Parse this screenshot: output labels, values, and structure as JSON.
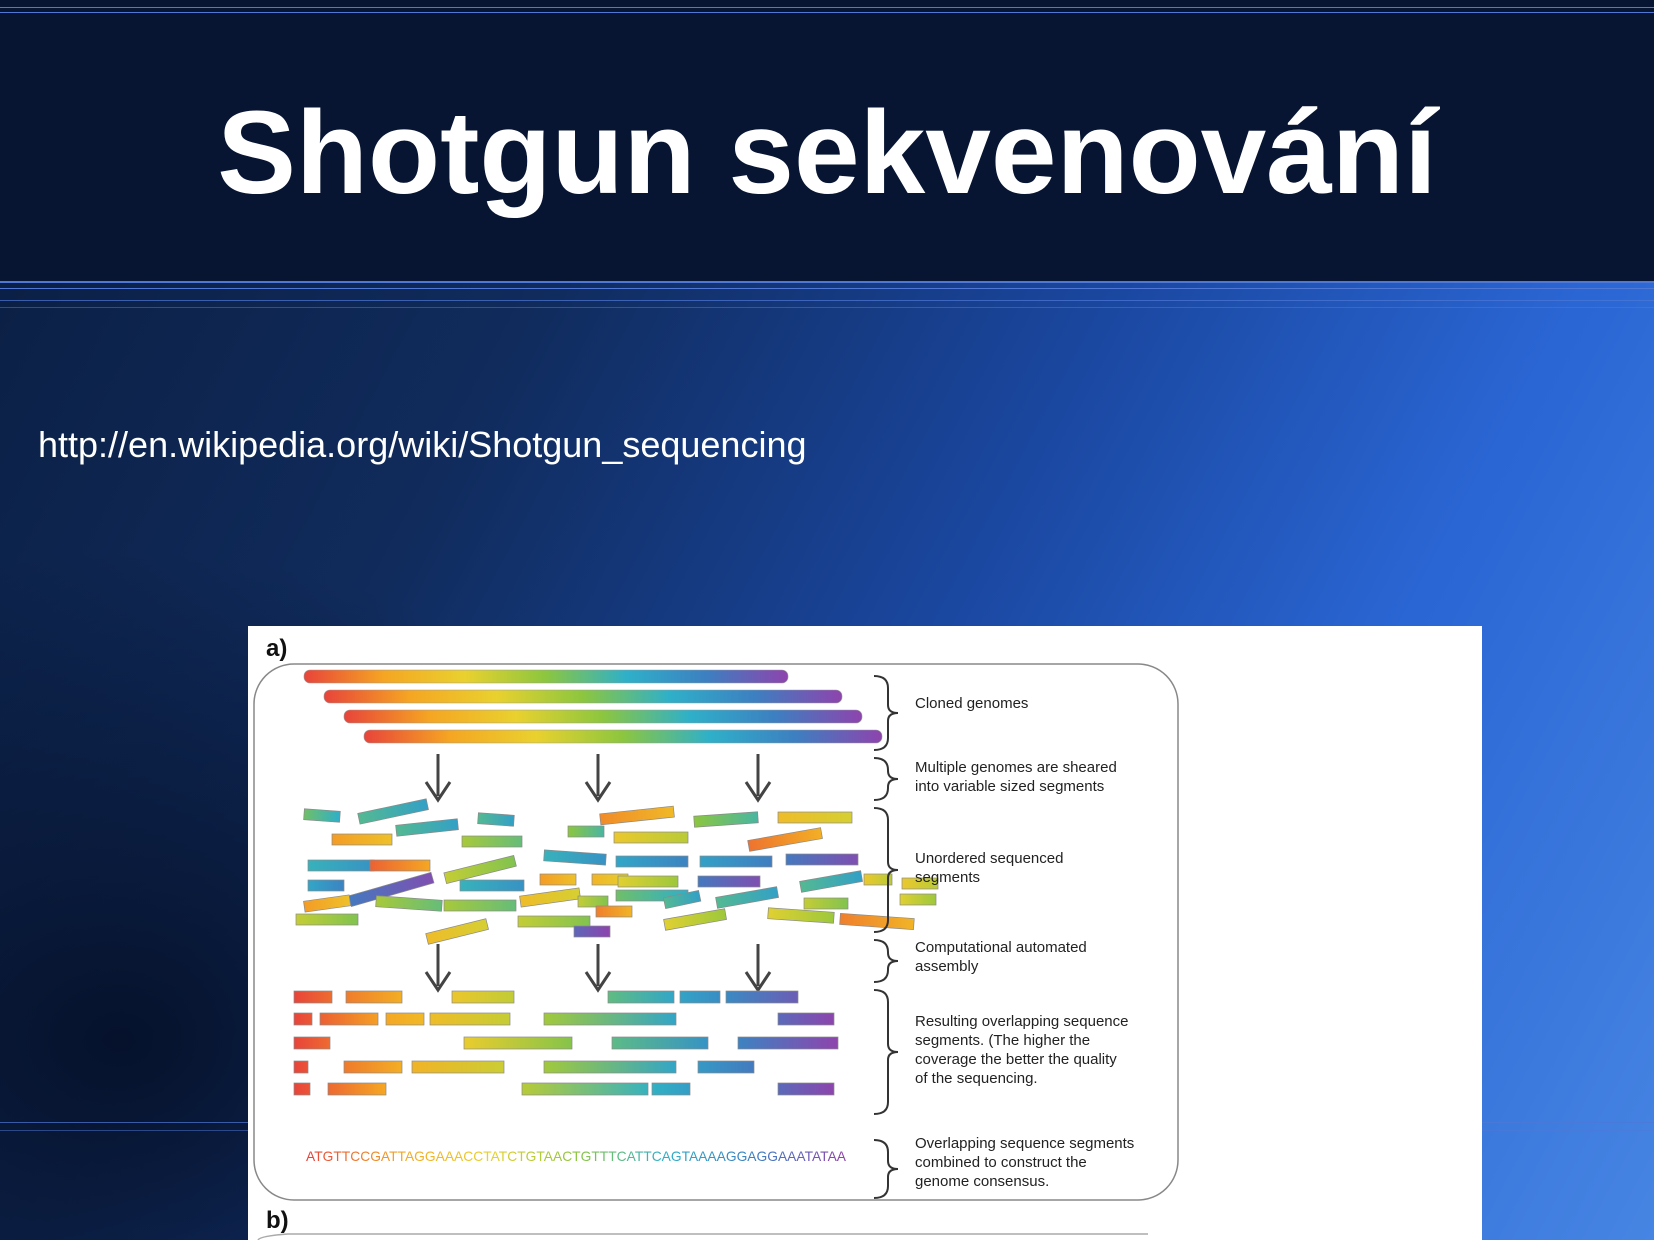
{
  "slide": {
    "title": "Shotgun sekvenování",
    "url": "http://en.wikipedia.org/wiki/Shotgun_sequencing"
  },
  "figure": {
    "panel_a_label": "a)",
    "panel_b_label": "b)",
    "steps": [
      [
        "Cloned genomes"
      ],
      [
        "Multiple genomes are sheared",
        "into variable sized segments"
      ],
      [
        "Unordered sequenced",
        "segments"
      ],
      [
        "Computational automated",
        "assembly"
      ],
      [
        "Resulting overlapping sequence",
        "segments. (The higher the",
        "coverage the better the quality",
        "of the sequencing."
      ],
      [
        "Overlapping sequence segments",
        "combined to construct the",
        "genome consensus."
      ]
    ],
    "consensus_sequence": "ATGTTCCGATTAGGAAACCTATCTGTAACTGTTTCATTCAGTAAAAGGAGGAAATATAA"
  },
  "colors": {
    "title_band": "#071532",
    "rule_lines": "#4f78d6",
    "text": "#ffffff",
    "gradient_stops": [
      "#e8443a",
      "#f5a623",
      "#e9d12f",
      "#8cc63f",
      "#2fb0c9",
      "#3d7fc1",
      "#8e44ad"
    ]
  }
}
